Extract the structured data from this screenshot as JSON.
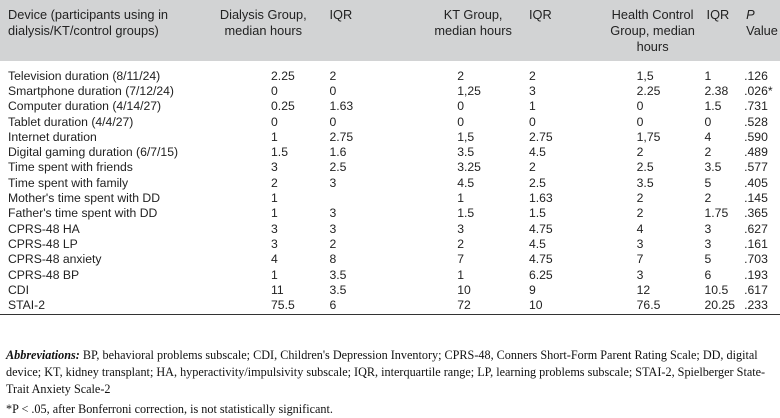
{
  "headers": [
    [
      "Device (participants using in",
      "dialysis/KT/control groups)"
    ],
    [
      "Dialysis Group,",
      "median hours"
    ],
    [
      "IQR"
    ],
    [
      "KT Group,",
      "median hours"
    ],
    [
      "IQR"
    ],
    [
      "Health Control",
      "Group, median",
      "hours"
    ],
    [
      "IQR"
    ],
    [
      "P",
      " Value"
    ]
  ],
  "rows": [
    [
      "Television duration (8/11/24)",
      "2.25",
      "2",
      "2",
      "2",
      "1,5",
      "1",
      ".126"
    ],
    [
      "Smartphone duration (7/12/24)",
      "0",
      "0",
      "1,25",
      "3",
      "2.25",
      "2.38",
      ".026*"
    ],
    [
      "Computer duration (4/14/27)",
      "0.25",
      "1.63",
      "0",
      "1",
      "0",
      "1.5",
      ".731"
    ],
    [
      "Tablet duration (4/4/27)",
      "0",
      "0",
      "0",
      "0",
      "0",
      "0",
      ".528"
    ],
    [
      "Internet duration",
      "1",
      "2.75",
      "1,5",
      "2.75",
      "1,75",
      "4",
      ".590"
    ],
    [
      "Digital gaming duration (6/7/15)",
      "1.5",
      "1.6",
      "3.5",
      "4.5",
      "2",
      "2",
      ".489"
    ],
    [
      "Time spent with friends",
      "3",
      "2.5",
      "3.25",
      "2",
      "2.5",
      "3.5",
      ".577"
    ],
    [
      "Time spent with family",
      "2",
      "3",
      "4.5",
      "2.5",
      "3.5",
      "5",
      ".405"
    ],
    [
      "Mother's time spent with DD",
      "1",
      "",
      "1",
      "1.63",
      "2",
      "2",
      ".145"
    ],
    [
      "Father's time spent with DD",
      "1",
      "3",
      "1.5",
      "1.5",
      "2",
      "1.75",
      ".365"
    ],
    [
      "CPRS-48 HA",
      "3",
      "3",
      "3",
      "4.75",
      "4",
      "3",
      ".627"
    ],
    [
      "CPRS-48 LP",
      "3",
      "2",
      "2",
      "4.5",
      "3",
      "3",
      ".161"
    ],
    [
      "CPRS-48 anxiety",
      "4",
      "8",
      "7",
      "4.75",
      "7",
      "5",
      ".703"
    ],
    [
      "CPRS-48 BP",
      "1",
      "3.5",
      "1",
      "6.25",
      "3",
      "6",
      ".193"
    ],
    [
      "CDI",
      "11",
      "3.5",
      "10",
      "9",
      "12",
      "10.5",
      ".617"
    ],
    [
      "STAI-2",
      "75.5",
      "6",
      "72",
      "10",
      "76.5",
      "20.25",
      ".233"
    ]
  ],
  "notes": {
    "abbrev_label": "Abbreviations:",
    "abbrev_text": " BP, behavioral problems subscale; CDI, Children's Depression Inventory; CPRS-48, Conners Short-Form Parent Rating Scale; DD, digital device; KT, kidney transplant; HA, hyperactivity/impulsivity subscale; IQR, interquartile range; LP, learning problems subscale; STAI-2, Spielberger State-Trait Anxiety Scale-2",
    "footnote": "*P < .05, after Bonferroni correction, is not statistically significant."
  }
}
